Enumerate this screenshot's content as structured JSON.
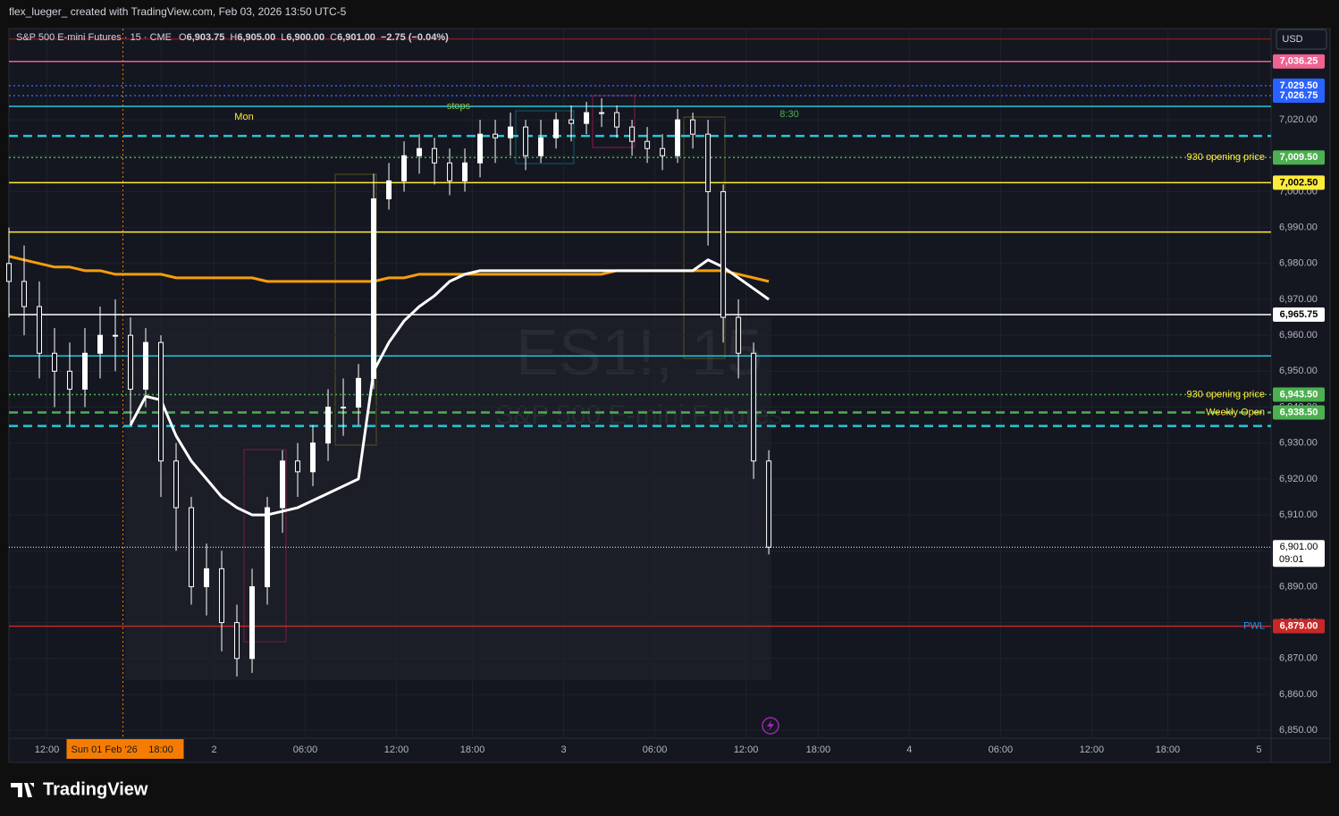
{
  "header": {
    "attribution": "flex_lueger_ created with TradingView.com, Feb 03, 2026 13:50 UTC-5"
  },
  "legend": {
    "symbol": "S&P 500 E-mini Futures · 15 · CME",
    "ohlc": [
      {
        "label": "O",
        "value": "6,903.75"
      },
      {
        "label": "H",
        "value": "6,905.00"
      },
      {
        "label": "L",
        "value": "6,900.00"
      },
      {
        "label": "C",
        "value": "6,901.00"
      }
    ],
    "change": "−2.75 (−0.04%)"
  },
  "currency": "USD",
  "watermark": {
    "ticker": "ES1!, 15",
    "name": "S&P 500 E-mini Futures"
  },
  "annotations": [
    "Mon",
    "stops",
    "8:30"
  ],
  "brand": "TradingView",
  "chart_data": {
    "type": "candlestick",
    "x": [
      0,
      4,
      8,
      12,
      16,
      20,
      24,
      28,
      32,
      36,
      40,
      44,
      48,
      52,
      56,
      60,
      64,
      68,
      72,
      76,
      80,
      84,
      88,
      92,
      96,
      100,
      104,
      108,
      112,
      116,
      120,
      124,
      128,
      132,
      136,
      140,
      144,
      148,
      152,
      156,
      160,
      164,
      168,
      172,
      176,
      180,
      184,
      188,
      192,
      196,
      200
    ],
    "open": [
      6980,
      6975,
      6968,
      6955,
      6950,
      6945,
      6955,
      6960,
      6960,
      6945,
      6958,
      6925,
      6912,
      6890,
      6895,
      6880,
      6870,
      6890,
      6912,
      6925,
      6922,
      6930,
      6940,
      6940,
      6948,
      6998,
      7003,
      7010,
      7012,
      7008,
      7003,
      7008,
      7016,
      7015,
      7018,
      7010,
      7015,
      7020,
      7019,
      7022,
      7022,
      7018,
      7014,
      7012,
      7010,
      7020,
      7016,
      7000,
      6965,
      6955,
      6925
    ],
    "high": [
      6990,
      6985,
      6975,
      6962,
      6958,
      6962,
      6968,
      6970,
      6965,
      6962,
      6960,
      6930,
      6915,
      6902,
      6900,
      6885,
      6895,
      6915,
      6928,
      6930,
      6935,
      6945,
      6948,
      6952,
      7005,
      7008,
      7014,
      7016,
      7015,
      7012,
      7012,
      7020,
      7020,
      7022,
      7020,
      7020,
      7022,
      7024,
      7025,
      7026,
      7024,
      7020,
      7018,
      7016,
      7023,
      7022,
      7020,
      7002,
      6970,
      6958,
      6928
    ],
    "low": [
      6965,
      6960,
      6948,
      6940,
      6935,
      6940,
      6948,
      6950,
      6935,
      6940,
      6915,
      6900,
      6885,
      6882,
      6872,
      6865,
      6866,
      6885,
      6905,
      6915,
      6918,
      6925,
      6932,
      6935,
      6945,
      6995,
      7000,
      7005,
      7002,
      6999,
      7000,
      7004,
      7008,
      7010,
      7006,
      7008,
      7012,
      7014,
      7016,
      7018,
      7015,
      7010,
      7008,
      7006,
      7008,
      7012,
      6985,
      6958,
      6948,
      6920,
      6899
    ],
    "close": [
      6975,
      6968,
      6955,
      6950,
      6945,
      6955,
      6960,
      6960,
      6945,
      6958,
      6925,
      6912,
      6890,
      6895,
      6880,
      6870,
      6890,
      6912,
      6925,
      6922,
      6930,
      6940,
      6940,
      6948,
      6998,
      7003,
      7010,
      7012,
      7008,
      7003,
      7008,
      7016,
      7015,
      7018,
      7010,
      7015,
      7020,
      7019,
      7022,
      7022,
      7018,
      7014,
      7012,
      7010,
      7020,
      7016,
      7000,
      6965,
      6955,
      6925,
      6901
    ],
    "up_color": "#ffffff",
    "down_color": "#ffffff",
    "series": [
      {
        "color": "#f59e0b",
        "values": [
          6982,
          6981,
          6980,
          6979,
          6979,
          6978,
          6978,
          6977,
          6977,
          6977,
          6977,
          6976,
          6976,
          6976,
          6976,
          6976,
          6976,
          6975,
          6975,
          6975,
          6975,
          6975,
          6975,
          6975,
          6975,
          6976,
          6976,
          6977,
          6977,
          6977,
          6977,
          6977,
          6977,
          6977,
          6977,
          6977,
          6977,
          6977,
          6977,
          6977,
          6978,
          6978,
          6978,
          6978,
          6978,
          6978,
          6978,
          6978,
          6977,
          6976,
          6975
        ]
      },
      {
        "color": "#ffffff",
        "values": [
          null,
          null,
          null,
          null,
          null,
          null,
          null,
          null,
          6935,
          6943,
          6942,
          6932,
          6925,
          6920,
          6915,
          6912,
          6910,
          6910,
          6911,
          6912,
          6914,
          6916,
          6918,
          6920,
          6950,
          6958,
          6964,
          6968,
          6971,
          6975,
          6977,
          6978,
          6978,
          6978,
          6978,
          6978,
          6978,
          6978,
          6978,
          6978,
          6978,
          6978,
          6978,
          6978,
          6978,
          6978,
          6981,
          6979,
          6976,
          6973,
          6970
        ]
      }
    ],
    "levels": [
      {
        "value": 7042.5,
        "color": "#7f1d1d",
        "style": "solid"
      },
      {
        "value": 7036.25,
        "value_label": "7,036.25",
        "color": "#f06292",
        "style": "solid"
      },
      {
        "value": 7029.5,
        "value_label": "7,029.50",
        "color": "#2962ff",
        "style": "dotted"
      },
      {
        "value": 7026.75,
        "value_label": "7,026.75",
        "color": "#2962ff",
        "style": "dotted"
      },
      {
        "value": 7023.75,
        "color": "#26c6da",
        "style": "solid"
      },
      {
        "value": 7015.5,
        "color": "#26c6da",
        "style": "dashed"
      },
      {
        "value": 7009.5,
        "value_label": "7,009.50",
        "color": "#4caf50",
        "style": "dotted",
        "text": "930 opening price",
        "text_color": "#ffeb3b"
      },
      {
        "value": 7002.5,
        "value_label": "7,002.50",
        "color": "#ffeb3b",
        "style": "solid"
      },
      {
        "value": 6988.75,
        "color": "#ffeb3b",
        "style": "solid"
      },
      {
        "value": 6965.75,
        "value_label": "6,965.75",
        "color": "#ffffff",
        "style": "solid"
      },
      {
        "value": 6954.25,
        "color": "#26c6da",
        "style": "solid"
      },
      {
        "value": 6943.5,
        "value_label": "6,943.50",
        "color": "#4caf50",
        "style": "dotted",
        "text": "930 opening price",
        "text_color": "#ffeb3b"
      },
      {
        "value": 6938.5,
        "value_label": "6,938.50",
        "color": "#4caf50",
        "style": "dashed",
        "text": "Weekly Open",
        "text_color": "#ffeb3b"
      },
      {
        "value": 6934.75,
        "color": "#26c6da",
        "style": "dashed"
      },
      {
        "value": 6879,
        "value_label": "6,879.00",
        "color": "#c62828",
        "style": "solid",
        "text": "PWL",
        "text_color": "#2196f3"
      }
    ],
    "last_price": {
      "value": 6901,
      "value_label": "6,901.00",
      "countdown": "09:01"
    },
    "crosshair": {
      "x": 30,
      "label": "Sun 01 Feb '26"
    },
    "xlim": [
      0,
      332.2
    ],
    "ylim": [
      6847.8,
      7045.4
    ],
    "xticks": [
      {
        "value": 10,
        "label": "12:00"
      },
      {
        "value": 40,
        "label": "18:00"
      },
      {
        "value": 54,
        "label": "2"
      },
      {
        "value": 78,
        "label": "06:00"
      },
      {
        "value": 102,
        "label": "12:00"
      },
      {
        "value": 122,
        "label": "18:00"
      },
      {
        "value": 146,
        "label": "3"
      },
      {
        "value": 170,
        "label": "06:00"
      },
      {
        "value": 194,
        "label": "12:00"
      },
      {
        "value": 213,
        "label": "18:00"
      },
      {
        "value": 237,
        "label": "4"
      },
      {
        "value": 261,
        "label": "06:00"
      },
      {
        "value": 285,
        "label": "12:00"
      },
      {
        "value": 305,
        "label": "18:00"
      },
      {
        "value": 329,
        "label": "5"
      }
    ],
    "yticks": [
      {
        "value": 6850,
        "label": "6,850.00"
      },
      {
        "value": 6860,
        "label": "6,860.00"
      },
      {
        "value": 6870,
        "label": "6,870.00"
      },
      {
        "value": 6880,
        "label": "6,880.00"
      },
      {
        "value": 6890,
        "label": "6,890.00"
      },
      {
        "value": 6900,
        "label": "6,900.00"
      },
      {
        "value": 6910,
        "label": "6,910.00"
      },
      {
        "value": 6920,
        "label": "6,920.00"
      },
      {
        "value": 6930,
        "label": "6,930.00"
      },
      {
        "value": 6940,
        "label": "6,940.00"
      },
      {
        "value": 6950,
        "label": "6,950.00"
      },
      {
        "value": 6960,
        "label": "6,960.00"
      },
      {
        "value": 6970,
        "label": "6,970.00"
      },
      {
        "value": 6980,
        "label": "6,980.00"
      },
      {
        "value": 6990,
        "label": "6,990.00"
      },
      {
        "value": 7000,
        "label": "7,000.00"
      },
      {
        "value": 7010,
        "label": "7,010.00"
      },
      {
        "value": 7020,
        "label": "7,020.00"
      }
    ],
    "grid": true
  }
}
